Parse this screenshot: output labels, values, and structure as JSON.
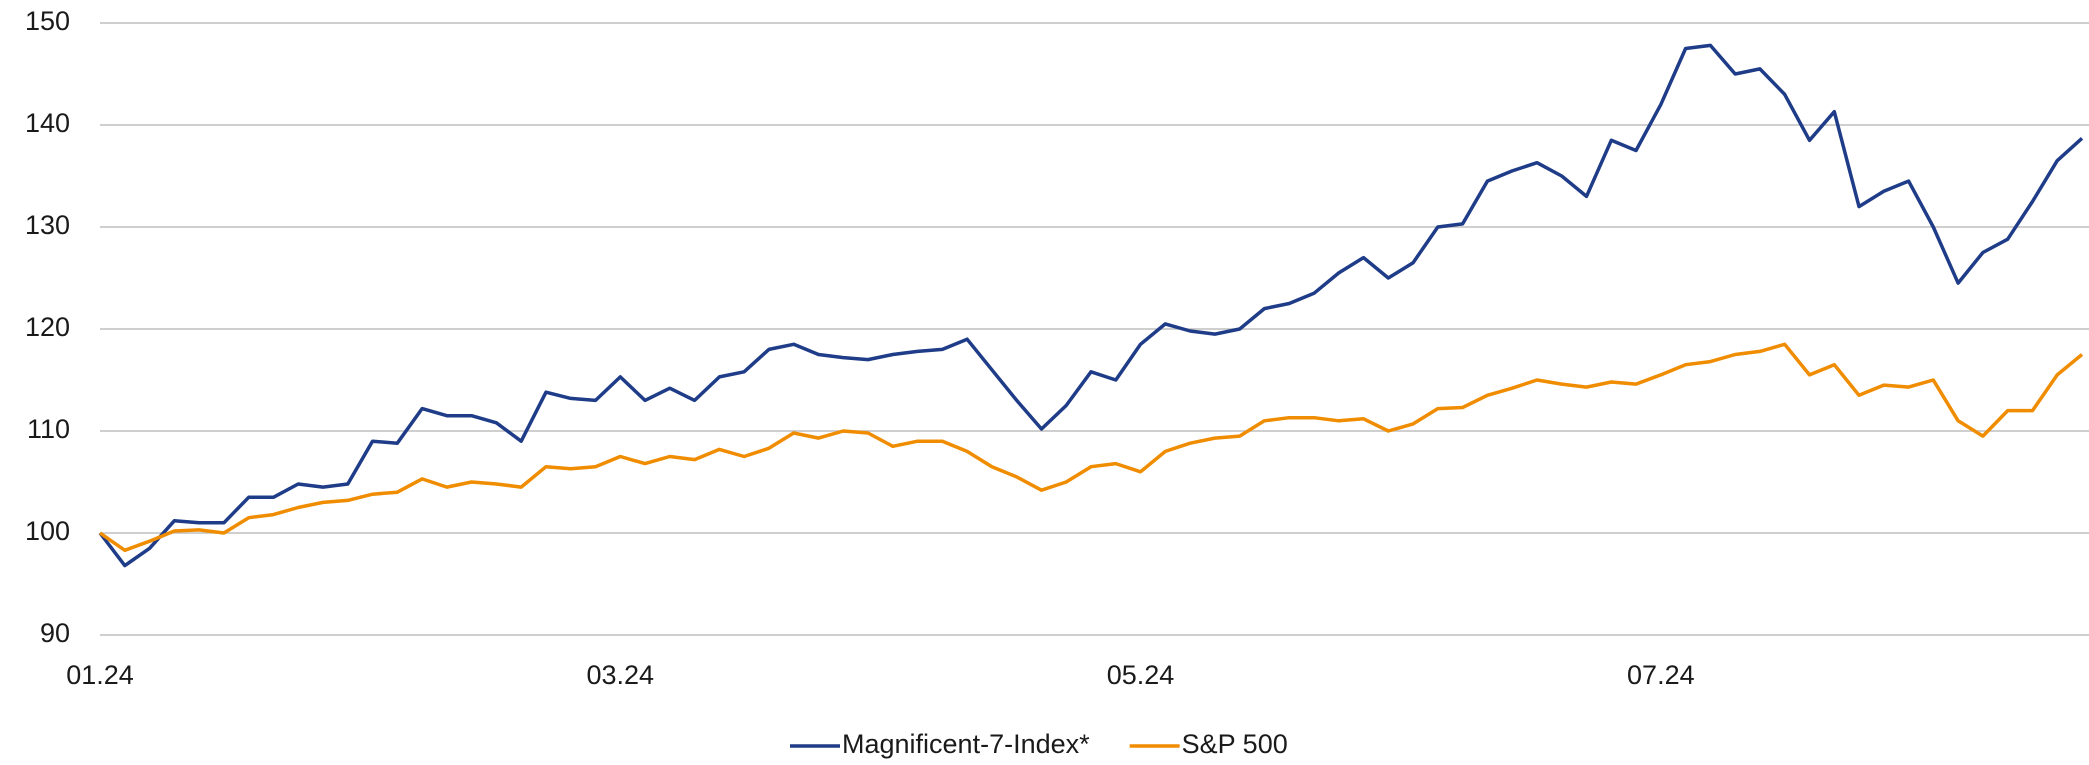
{
  "chart_data": {
    "type": "line",
    "categories": [
      "01.24",
      null,
      null,
      null,
      null,
      null,
      null,
      null,
      null,
      null,
      null,
      null,
      null,
      null,
      null,
      null,
      null,
      null,
      null,
      null,
      null,
      "03.24",
      null,
      null,
      null,
      null,
      null,
      null,
      null,
      null,
      null,
      null,
      null,
      null,
      null,
      null,
      null,
      null,
      null,
      null,
      null,
      null,
      "05.24",
      null,
      null,
      null,
      null,
      null,
      null,
      null,
      null,
      null,
      null,
      null,
      null,
      null,
      null,
      null,
      null,
      null,
      null,
      null,
      null,
      "07.24",
      null,
      null,
      null,
      null,
      null,
      null,
      null,
      null,
      null,
      null,
      null,
      null,
      null,
      null,
      null,
      null,
      null
    ],
    "series": [
      {
        "name": "Magnificent-7-Index*",
        "color": "#1f3c88",
        "values": [
          100,
          96.8,
          98.5,
          101.2,
          101.0,
          101.0,
          103.5,
          103.5,
          104.8,
          104.5,
          104.8,
          109.0,
          108.8,
          112.2,
          111.5,
          111.5,
          110.8,
          109.0,
          113.8,
          113.2,
          113.0,
          115.3,
          113.0,
          114.2,
          113.0,
          115.3,
          115.8,
          118.0,
          118.5,
          117.5,
          117.2,
          117.0,
          117.5,
          117.8,
          118.0,
          119.0,
          116.0,
          113.0,
          110.2,
          112.5,
          115.8,
          115.0,
          118.5,
          120.5,
          119.8,
          119.5,
          120.0,
          122.0,
          122.5,
          123.5,
          125.5,
          127.0,
          125.0,
          126.5,
          130.0,
          130.3,
          134.5,
          135.5,
          136.3,
          135.0,
          133.0,
          138.5,
          137.5,
          142.0,
          147.5,
          147.8,
          145.0,
          145.5,
          143.0,
          138.5,
          141.3,
          132.0,
          133.5,
          134.5,
          130.0,
          124.5,
          127.5,
          128.8,
          132.5,
          136.5,
          138.7
        ]
      },
      {
        "name": "S&P 500",
        "color": "#f08c00",
        "values": [
          100,
          98.3,
          99.2,
          100.2,
          100.3,
          100.0,
          101.5,
          101.8,
          102.5,
          103.0,
          103.2,
          103.8,
          104.0,
          105.3,
          104.5,
          105.0,
          104.8,
          104.5,
          106.5,
          106.3,
          106.5,
          107.5,
          106.8,
          107.5,
          107.2,
          108.2,
          107.5,
          108.3,
          109.8,
          109.3,
          110.0,
          109.8,
          108.5,
          109.0,
          109.0,
          108.0,
          106.5,
          105.5,
          104.2,
          105.0,
          106.5,
          106.8,
          106.0,
          108.0,
          108.8,
          109.3,
          109.5,
          111.0,
          111.3,
          111.3,
          111.0,
          111.2,
          110.0,
          110.7,
          112.2,
          112.3,
          113.5,
          114.2,
          115.0,
          114.6,
          114.3,
          114.8,
          114.6,
          115.5,
          116.5,
          116.8,
          117.5,
          117.8,
          118.5,
          115.5,
          116.5,
          113.5,
          114.5,
          114.3,
          115.0,
          111.0,
          109.5,
          112.0,
          112.0,
          115.5,
          117.5
        ]
      }
    ],
    "ylim": [
      90,
      150
    ],
    "yticks": [
      90,
      100,
      110,
      120,
      130,
      140,
      150
    ],
    "grid": true,
    "legend": "bottom"
  }
}
